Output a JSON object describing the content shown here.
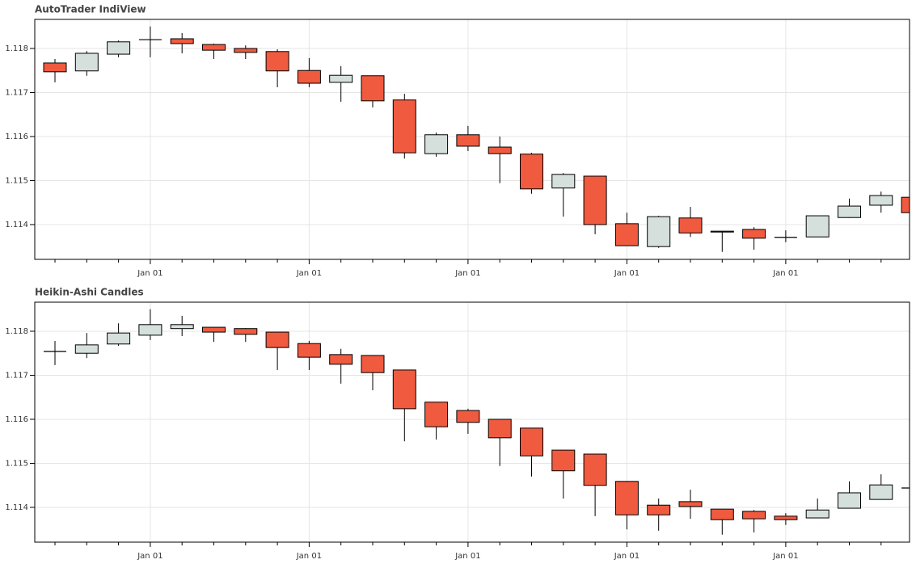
{
  "chart_data": [
    {
      "type": "candlestick",
      "title": "AutoTrader IndiView",
      "categories": [
        null,
        null,
        null,
        "Jan 01",
        null,
        null,
        null,
        null,
        "Jan 01",
        null,
        null,
        null,
        null,
        "Jan 01",
        null,
        null,
        null,
        null,
        "Jan 01",
        null,
        null,
        null,
        null,
        "Jan 01",
        null,
        null,
        null,
        null
      ],
      "open": [
        1.11767,
        1.11749,
        1.11787,
        1.1182,
        1.11822,
        1.11809,
        1.118,
        1.11793,
        1.1175,
        1.11723,
        1.11738,
        1.11683,
        1.11561,
        1.11604,
        1.11576,
        1.1156,
        1.11483,
        1.1151,
        1.11402,
        1.1135,
        1.11415,
        1.11385,
        1.11389,
        1.11371,
        1.11372,
        1.11416,
        1.11444,
        1.11462
      ],
      "high": [
        1.11776,
        1.11794,
        1.11818,
        1.1185,
        1.11835,
        1.11811,
        1.11807,
        1.11798,
        1.11778,
        1.1176,
        1.11738,
        1.11697,
        1.11609,
        1.11624,
        1.116,
        1.11563,
        1.11517,
        1.1151,
        1.11427,
        1.1142,
        1.1144,
        1.11385,
        1.11394,
        1.11387,
        1.1142,
        1.11459,
        1.11475,
        1.11462
      ],
      "low": [
        1.11723,
        1.11738,
        1.1178,
        1.1178,
        1.11789,
        1.11776,
        1.11776,
        1.11712,
        1.11712,
        1.11679,
        1.11666,
        1.1155,
        1.11554,
        1.11567,
        1.11494,
        1.1147,
        1.11418,
        1.11378,
        1.11352,
        1.11347,
        1.11372,
        1.11338,
        1.11343,
        1.1136,
        1.11372,
        1.11415,
        1.11427,
        1.11427
      ],
      "close": [
        1.11747,
        1.11789,
        1.11815,
        1.1182,
        1.11811,
        1.11796,
        1.11791,
        1.11749,
        1.11721,
        1.11739,
        1.11681,
        1.11563,
        1.11604,
        1.11578,
        1.11561,
        1.11481,
        1.11514,
        1.114,
        1.11352,
        1.11418,
        1.11381,
        1.11383,
        1.11369,
        1.11371,
        1.1142,
        1.11442,
        1.11466,
        1.11427
      ],
      "up_color": "#d5e0dc",
      "down_color": "#f05a3f",
      "ylim": [
        1.11321,
        1.11866
      ],
      "yticks": [
        1.114,
        1.115,
        1.116,
        1.117,
        1.118
      ],
      "grid": true
    },
    {
      "type": "candlestick",
      "title": "Heikin-Ashi Candles",
      "categories": [
        null,
        null,
        null,
        "Jan 01",
        null,
        null,
        null,
        null,
        "Jan 01",
        null,
        null,
        null,
        null,
        "Jan 01",
        null,
        null,
        null,
        null,
        "Jan 01",
        null,
        null,
        null,
        null,
        "Jan 01",
        null,
        null,
        null,
        null
      ],
      "open": [
        1.11754,
        1.1175,
        1.11771,
        1.11791,
        1.11806,
        1.11809,
        1.11806,
        1.11798,
        1.11772,
        1.11747,
        1.11745,
        1.11712,
        1.11639,
        1.1162,
        1.116,
        1.1158,
        1.1153,
        1.11521,
        1.11459,
        1.11405,
        1.11413,
        1.11396,
        1.11391,
        1.1138,
        1.11376,
        1.11398,
        1.11418,
        1.11444
      ],
      "high": [
        1.11778,
        1.11796,
        1.11818,
        1.1185,
        1.11835,
        1.11809,
        1.11807,
        1.11798,
        1.11778,
        1.1176,
        1.11745,
        1.11712,
        1.11639,
        1.11624,
        1.116,
        1.1158,
        1.1153,
        1.11521,
        1.11459,
        1.1142,
        1.1144,
        1.11396,
        1.11394,
        1.11387,
        1.1142,
        1.11459,
        1.11475,
        1.11444
      ],
      "low": [
        1.11723,
        1.11739,
        1.11767,
        1.1178,
        1.11789,
        1.11776,
        1.11776,
        1.11712,
        1.11712,
        1.11681,
        1.11666,
        1.1155,
        1.11554,
        1.11567,
        1.11494,
        1.1147,
        1.1142,
        1.1138,
        1.1135,
        1.11347,
        1.11374,
        1.11338,
        1.11343,
        1.1136,
        1.11376,
        1.11398,
        1.11418,
        1.11444
      ],
      "close": [
        1.11754,
        1.11769,
        1.11796,
        1.11815,
        1.11815,
        1.11798,
        1.11793,
        1.11763,
        1.11741,
        1.11725,
        1.11706,
        1.11624,
        1.11583,
        1.11593,
        1.11558,
        1.11517,
        1.11483,
        1.1145,
        1.11383,
        1.11383,
        1.11402,
        1.11372,
        1.11374,
        1.11372,
        1.11394,
        1.11433,
        1.11451,
        1.11444
      ],
      "up_color": "#d5e0dc",
      "down_color": "#f05a3f",
      "ylim": [
        1.11321,
        1.11866
      ],
      "yticks": [
        1.114,
        1.115,
        1.116,
        1.117,
        1.118
      ],
      "grid": true
    }
  ]
}
